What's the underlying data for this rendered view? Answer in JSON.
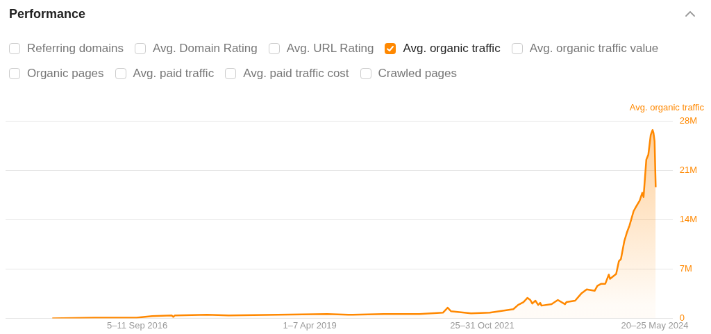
{
  "chart_data": {
    "type": "area",
    "title": "Performance",
    "ylabel": "Avg. organic traffic",
    "legend": "top",
    "annotations": [
      "Referring domains",
      "Avg. Domain Rating",
      "Avg. URL Rating",
      "Avg. organic traffic value",
      "Organic pages",
      "Avg. paid traffic",
      "Avg. paid traffic cost",
      "Crawled pages"
    ],
    "xlim": [
      "2014-09-20",
      "2024-08-25"
    ],
    "xticks": [
      {
        "value": "2016-09-05",
        "label": "5–11 Sep 2016"
      },
      {
        "value": "2019-04-01",
        "label": "1–7 Apr 2019"
      },
      {
        "value": "2021-10-25",
        "label": "25–31 Oct 2021"
      },
      {
        "value": "2024-05-20",
        "label": "20–25 May 2024"
      }
    ],
    "ylim": [
      0,
      28
    ],
    "yticks": [
      0,
      {
        "value": 7,
        "label": "7M"
      },
      {
        "value": 14,
        "label": "14M"
      },
      {
        "value": 21,
        "label": "21M"
      },
      {
        "value": 28,
        "label": "28M"
      }
    ],
    "grid": "y",
    "marker": "none",
    "line_style": "solid",
    "series": [
      {
        "name": "Avg. organic traffic",
        "color": "#ff8800",
        "x": [
          "2015-06-01",
          "2016-01-15",
          "2016-09-01",
          "2016-11-25",
          "2017-03-12",
          "2017-03-20",
          "2017-03-28",
          "2017-09-20",
          "2018-01-15",
          "2018-10-10",
          "2019-07-05",
          "2019-10-28",
          "2020-05-08",
          "2020-11-17",
          "2021-03-25",
          "2021-04-20",
          "2021-05-08",
          "2021-08-25",
          "2021-12-05",
          "2022-04-12",
          "2022-05-08",
          "2022-06-06",
          "2022-06-28",
          "2022-07-13",
          "2022-07-24",
          "2022-08-10",
          "2022-08-25",
          "2022-09-05",
          "2022-09-12",
          "2022-11-06",
          "2022-12-10",
          "2023-01-18",
          "2023-01-26",
          "2023-03-14",
          "2023-04-16",
          "2023-05-16",
          "2023-06-28",
          "2023-07-13",
          "2023-08-03",
          "2023-08-25",
          "2023-09-13",
          "2023-09-20",
          "2023-10-23",
          "2023-11-07",
          "2023-11-18",
          "2023-12-06",
          "2023-12-21",
          "2024-01-04",
          "2024-01-26",
          "2024-02-10",
          "2024-02-28",
          "2024-03-13",
          "2024-03-20",
          "2024-04-04",
          "2024-04-15",
          "2024-04-28",
          "2024-05-08",
          "2024-05-13",
          "2024-05-19",
          "2024-05-25"
        ],
        "values": [
          0.0,
          0.1,
          0.1,
          0.3,
          0.4,
          0.2,
          0.4,
          0.5,
          0.4,
          0.5,
          0.6,
          0.5,
          0.6,
          0.6,
          0.8,
          1.5,
          1.0,
          0.7,
          0.8,
          1.3,
          1.9,
          2.3,
          2.9,
          2.6,
          2.1,
          2.5,
          1.9,
          2.2,
          1.8,
          2.0,
          2.6,
          2.0,
          2.3,
          2.5,
          3.5,
          4.1,
          3.9,
          4.6,
          4.9,
          4.9,
          6.2,
          5.6,
          6.3,
          8.1,
          8.4,
          10.9,
          12.2,
          13.2,
          15.2,
          15.9,
          16.7,
          17.8,
          17.2,
          22.5,
          23.2,
          26.0,
          26.7,
          26.3,
          25.1,
          18.6
        ]
      }
    ]
  }
}
